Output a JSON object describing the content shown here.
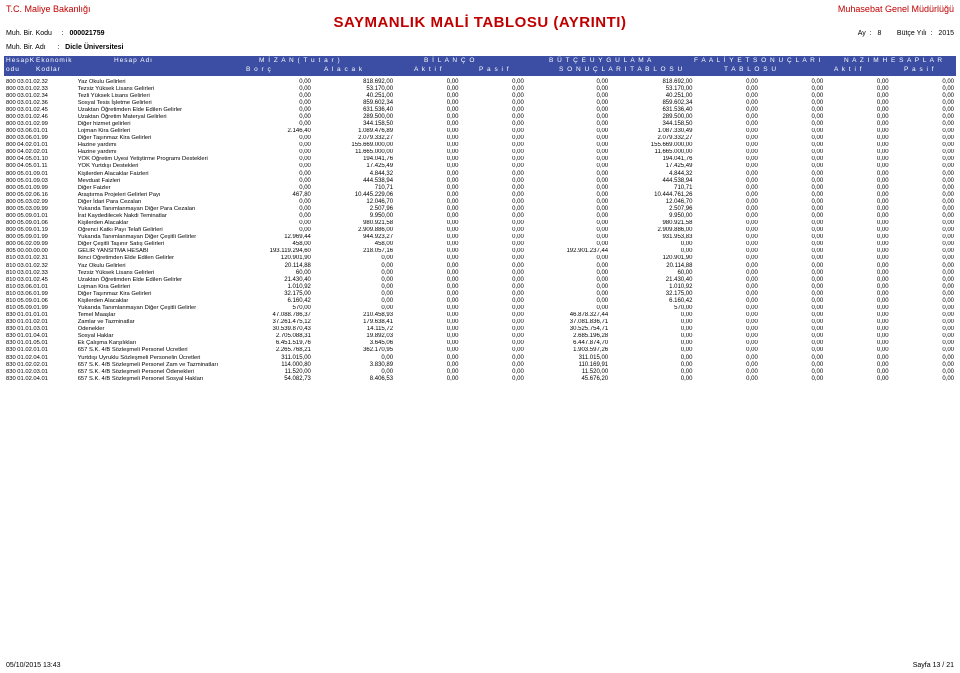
{
  "header": {
    "ministry": "T.C. Maliye Bakanlığı",
    "department": "Muhasebat Genel Müdürlüğü",
    "title": "SAYMANLIK MALİ TABLOSU (AYRINTI)",
    "birKoduLabel": "Muh. Bir. Kodu",
    "birKoduValue": "000021759",
    "ayLabel": "Ay",
    "ayValue": "8",
    "butceYiliLabel": "Bütçe Yılı",
    "butceYiliValue": "2015",
    "birAdiLabel": "Muh. Bir. Adı",
    "birAdiValue": "Dicle Üniversitesi"
  },
  "band": {
    "c1a": "HesapK",
    "c1b": "odu",
    "c2a": "Ekonomik",
    "c2b": "Kodlar",
    "c3": "Hesap Adı",
    "mizan": "M İ Z A N  ( T u t a r )",
    "bilanco": "B İ L A N Ç O",
    "butce": "B Ü T Ç E   U Y G U L A M A",
    "faaliyet": "F A A L İ Y E T   S O N U Ç L A R I",
    "nazim": "N A Z I M   H E S A P L A R",
    "borc": "B o r ç",
    "alacak": "A l a c a k",
    "aktif": "A k t i f",
    "pasif": "P a s i f",
    "sonuclari": "S O N U Ç L A R I   T A B L O S U",
    "tablosu": "T A B L O S U"
  },
  "rows": [
    {
      "c": "800  03.01.02.32",
      "d": "Yaz Okulu Gelirleri",
      "v": [
        "0,00",
        "818.692,00",
        "0,00",
        "0,00",
        "0,00",
        "818.692,00",
        "0,00",
        "0,00",
        "0,00",
        "0,00"
      ]
    },
    {
      "c": "800  03.01.02.33",
      "d": "Tezsiz Yüksek Lisans Gelirleri",
      "v": [
        "0,00",
        "53.170,00",
        "0,00",
        "0,00",
        "0,00",
        "53.170,00",
        "0,00",
        "0,00",
        "0,00",
        "0,00"
      ]
    },
    {
      "c": "800  03.01.02.34",
      "d": "Tezli Yüksek Lisans Gelirleri",
      "v": [
        "0,00",
        "40.251,00",
        "0,00",
        "0,00",
        "0,00",
        "40.251,00",
        "0,00",
        "0,00",
        "0,00",
        "0,00"
      ]
    },
    {
      "c": "800  03.01.02.36",
      "d": "Sosyal Tesis İşletme Gelirleri",
      "v": [
        "0,00",
        "859.602,34",
        "0,00",
        "0,00",
        "0,00",
        "859.602,34",
        "0,00",
        "0,00",
        "0,00",
        "0,00"
      ]
    },
    {
      "c": "800  03.01.02.45",
      "d": "Uzaktan Öğretimden Elde Edilen Gelirler",
      "v": [
        "0,00",
        "631.536,40",
        "0,00",
        "0,00",
        "0,00",
        "631.536,40",
        "0,00",
        "0,00",
        "0,00",
        "0,00"
      ]
    },
    {
      "c": "800  03.01.02.46",
      "d": "Uzaktan Öğretim Materyal Gelirleri",
      "v": [
        "0,00",
        "289.500,00",
        "0,00",
        "0,00",
        "0,00",
        "289.500,00",
        "0,00",
        "0,00",
        "0,00",
        "0,00"
      ]
    },
    {
      "c": "800  03.01.02.99",
      "d": "Diğer hizmet gelirleri",
      "v": [
        "0,00",
        "344.158,50",
        "0,00",
        "0,00",
        "0,00",
        "344.158,50",
        "0,00",
        "0,00",
        "0,00",
        "0,00"
      ]
    },
    {
      "c": "800  03.06.01.01",
      "d": "Lojman Kira Gelirleri",
      "v": [
        "2.146,40",
        "1.089.476,89",
        "0,00",
        "0,00",
        "0,00",
        "1.087.330,49",
        "0,00",
        "0,00",
        "0,00",
        "0,00"
      ]
    },
    {
      "c": "800  03.06.01.99",
      "d": "Diğer Taşınmaz Kira Gelirleri",
      "v": [
        "0,00",
        "2.079.332,27",
        "0,00",
        "0,00",
        "0,00",
        "2.079.332,27",
        "0,00",
        "0,00",
        "0,00",
        "0,00"
      ]
    },
    {
      "c": "800  04.02.01.01",
      "d": "Hazine yardımı",
      "v": [
        "0,00",
        "155.669.000,00",
        "0,00",
        "0,00",
        "0,00",
        "155.669.000,00",
        "0,00",
        "0,00",
        "0,00",
        "0,00"
      ]
    },
    {
      "c": "800  04.02.02.01",
      "d": "Hazine yardımı",
      "v": [
        "0,00",
        "11.665.000,00",
        "0,00",
        "0,00",
        "0,00",
        "11.665.000,00",
        "0,00",
        "0,00",
        "0,00",
        "0,00"
      ]
    },
    {
      "c": "800  04.05.01.10",
      "d": "YÖK Öğretim Üyesi Yetiştirme Programı Destekleri",
      "v": [
        "0,00",
        "194.041,76",
        "0,00",
        "0,00",
        "0,00",
        "194.041,76",
        "0,00",
        "0,00",
        "0,00",
        "0,00"
      ]
    },
    {
      "c": "800  04.05.01.11",
      "d": "YÖK Yurtdışı Destekleri",
      "v": [
        "0,00",
        "17.425,49",
        "0,00",
        "0,00",
        "0,00",
        "17.425,49",
        "0,00",
        "0,00",
        "0,00",
        "0,00"
      ]
    },
    {
      "c": "800  05.01.09.01",
      "d": "Kişilerden Alacaklar Faizleri",
      "v": [
        "0,00",
        "4.844,32",
        "0,00",
        "0,00",
        "0,00",
        "4.844,32",
        "0,00",
        "0,00",
        "0,00",
        "0,00"
      ]
    },
    {
      "c": "800  05.01.09.03",
      "d": "Mevduat Faizleri",
      "v": [
        "0,00",
        "444.538,94",
        "0,00",
        "0,00",
        "0,00",
        "444.538,94",
        "0,00",
        "0,00",
        "0,00",
        "0,00"
      ]
    },
    {
      "c": "800  05.01.09.99",
      "d": "Diğer Faizler",
      "v": [
        "0,00",
        "710,71",
        "0,00",
        "0,00",
        "0,00",
        "710,71",
        "0,00",
        "0,00",
        "0,00",
        "0,00"
      ]
    },
    {
      "c": "800  05.02.06.16",
      "d": "Araştırma Projeleri Gelirleri Payı",
      "v": [
        "467,80",
        "10.445.229,06",
        "0,00",
        "0,00",
        "0,00",
        "10.444.761,26",
        "0,00",
        "0,00",
        "0,00",
        "0,00"
      ]
    },
    {
      "c": "800  05.03.02.99",
      "d": "Diğer İdari Para Cezaları",
      "v": [
        "0,00",
        "12.046,70",
        "0,00",
        "0,00",
        "0,00",
        "12.046,70",
        "0,00",
        "0,00",
        "0,00",
        "0,00"
      ]
    },
    {
      "c": "800  05.03.09.99",
      "d": "Yukarıda Tanımlanmayan Diğer Para Cezaları",
      "v": [
        "0,00",
        "2.507,96",
        "0,00",
        "0,00",
        "0,00",
        "2.507,96",
        "0,00",
        "0,00",
        "0,00",
        "0,00"
      ]
    },
    {
      "c": "800  05.09.01.01",
      "d": "İrat Kaydedilecek Nakdi Teminatlar",
      "v": [
        "0,00",
        "9.950,00",
        "0,00",
        "0,00",
        "0,00",
        "9.950,00",
        "0,00",
        "0,00",
        "0,00",
        "0,00"
      ]
    },
    {
      "c": "800  05.09.01.06",
      "d": "Kişilerden Alacaklar",
      "v": [
        "0,00",
        "980.921,58",
        "0,00",
        "0,00",
        "0,00",
        "980.921,58",
        "0,00",
        "0,00",
        "0,00",
        "0,00"
      ]
    },
    {
      "c": "800  05.09.01.19",
      "d": "Öğrenci Katkı Payı Telafi Gelirleri",
      "v": [
        "0,00",
        "2.909.886,00",
        "0,00",
        "0,00",
        "0,00",
        "2.909.886,00",
        "0,00",
        "0,00",
        "0,00",
        "0,00"
      ]
    },
    {
      "c": "800  05.09.01.99",
      "d": "Yukarıda Tanımlanmayan Diğer Çeşitli Gelirler",
      "v": [
        "12.969,44",
        "944.923,27",
        "0,00",
        "0,00",
        "0,00",
        "931.953,83",
        "0,00",
        "0,00",
        "0,00",
        "0,00"
      ]
    },
    {
      "c": "800  06.02.09.99",
      "d": "Diğer Çeşitli Taşınır Satış Gelirleri",
      "v": [
        "458,00",
        "458,00",
        "0,00",
        "0,00",
        "0,00",
        "0,00",
        "0,00",
        "0,00",
        "0,00",
        "0,00"
      ]
    },
    {
      "c": "805  00.00.00.00",
      "d": "GELİR YANSITMA HESABI",
      "v": [
        "193.119.294,60",
        "218.057,16",
        "0,00",
        "0,00",
        "192.901.237,44",
        "0,00",
        "0,00",
        "0,00",
        "0,00",
        "0,00"
      ]
    },
    {
      "c": "810  03.01.02.31",
      "d": "İkinci Öğretimden Elde Edilen Gelirler",
      "v": [
        "120.901,90",
        "0,00",
        "0,00",
        "0,00",
        "0,00",
        "120.901,90",
        "0,00",
        "0,00",
        "0,00",
        "0,00"
      ]
    },
    {
      "c": "810  03.01.02.32",
      "d": "Yaz Okulu Gelirleri",
      "v": [
        "20.114,88",
        "0,00",
        "0,00",
        "0,00",
        "0,00",
        "20.114,88",
        "0,00",
        "0,00",
        "0,00",
        "0,00"
      ]
    },
    {
      "c": "810  03.01.02.33",
      "d": "Tezsiz Yüksek Lisans Gelirleri",
      "v": [
        "60,00",
        "0,00",
        "0,00",
        "0,00",
        "0,00",
        "60,00",
        "0,00",
        "0,00",
        "0,00",
        "0,00"
      ]
    },
    {
      "c": "810  03.01.02.45",
      "d": "Uzaktan Öğretimden Elde Edilen Gelirler",
      "v": [
        "21.430,40",
        "0,00",
        "0,00",
        "0,00",
        "0,00",
        "21.430,40",
        "0,00",
        "0,00",
        "0,00",
        "0,00"
      ]
    },
    {
      "c": "810  03.06.01.01",
      "d": "Lojman Kira Gelirleri",
      "v": [
        "1.010,92",
        "0,00",
        "0,00",
        "0,00",
        "0,00",
        "1.010,92",
        "0,00",
        "0,00",
        "0,00",
        "0,00"
      ]
    },
    {
      "c": "810  03.06.01.99",
      "d": "Diğer Taşınmaz Kira Gelirleri",
      "v": [
        "32.175,00",
        "0,00",
        "0,00",
        "0,00",
        "0,00",
        "32.175,00",
        "0,00",
        "0,00",
        "0,00",
        "0,00"
      ]
    },
    {
      "c": "810  05.09.01.06",
      "d": "Kişilerden Alacaklar",
      "v": [
        "6.160,42",
        "0,00",
        "0,00",
        "0,00",
        "0,00",
        "6.160,42",
        "0,00",
        "0,00",
        "0,00",
        "0,00"
      ]
    },
    {
      "c": "810  05.09.01.99",
      "d": "Yukarıda Tanımlanmayan Diğer Çeşitli Gelirler",
      "v": [
        "570,00",
        "0,00",
        "0,00",
        "0,00",
        "0,00",
        "570,00",
        "0,00",
        "0,00",
        "0,00",
        "0,00"
      ]
    },
    {
      "c": "830  01.01.01.01",
      "d": "Temel Maaşlar",
      "v": [
        "47.088.786,37",
        "210.458,93",
        "0,00",
        "0,00",
        "46.878.327,44",
        "0,00",
        "0,00",
        "0,00",
        "0,00",
        "0,00"
      ]
    },
    {
      "c": "830  01.01.02.01",
      "d": "Zamlar ve Tazminatlar",
      "v": [
        "37.261.475,12",
        "179.638,41",
        "0,00",
        "0,00",
        "37.081.836,71",
        "0,00",
        "0,00",
        "0,00",
        "0,00",
        "0,00"
      ]
    },
    {
      "c": "830  01.01.03.01",
      "d": "Ödenekler",
      "v": [
        "30.539.870,43",
        "14.115,72",
        "0,00",
        "0,00",
        "30.525.754,71",
        "0,00",
        "0,00",
        "0,00",
        "0,00",
        "0,00"
      ]
    },
    {
      "c": "830  01.01.04.01",
      "d": "Sosyal Haklar",
      "v": [
        "2.705.088,31",
        "19.892,03",
        "0,00",
        "0,00",
        "2.685.196,28",
        "0,00",
        "0,00",
        "0,00",
        "0,00",
        "0,00"
      ]
    },
    {
      "c": "830  01.01.05.01",
      "d": "Ek Çalışma Karşılıkları",
      "v": [
        "6.451.519,76",
        "3.645,06",
        "0,00",
        "0,00",
        "6.447.874,70",
        "0,00",
        "0,00",
        "0,00",
        "0,00",
        "0,00"
      ]
    },
    {
      "c": "830  01.02.01.01",
      "d": "657 S.K. 4/B Sözleşmeli Personel Ücretleri",
      "v": [
        "2.265.768,21",
        "362.170,95",
        "0,00",
        "0,00",
        "1.903.597,26",
        "0,00",
        "0,00",
        "0,00",
        "0,00",
        "0,00"
      ]
    },
    {
      "c": "830  01.02.04.01",
      "d": "Yurtdışı Uyruklu Sözleşmeli Personelin Ücretleri",
      "v": [
        "311.015,00",
        "0,00",
        "0,00",
        "0,00",
        "311.015,00",
        "0,00",
        "0,00",
        "0,00",
        "0,00",
        "0,00"
      ]
    },
    {
      "c": "830  01.02.02.01",
      "d": "657 S.K. 4/B Sözleşmeli Personel Zam ve Tazminatları",
      "v": [
        "114.000,80",
        "3.830,89",
        "0,00",
        "0,00",
        "110.169,91",
        "0,00",
        "0,00",
        "0,00",
        "0,00",
        "0,00"
      ]
    },
    {
      "c": "830  01.02.03.01",
      "d": "657 S.K. 4/B Sözleşmeli Personel Ödenekleri",
      "v": [
        "11.520,00",
        "0,00",
        "0,00",
        "0,00",
        "11.520,00",
        "0,00",
        "0,00",
        "0,00",
        "0,00",
        "0,00"
      ]
    },
    {
      "c": "830  01.02.04.01",
      "d": "657 S.K. 4/B Sözleşmeli Personel Sosyal Hakları",
      "v": [
        "54.082,73",
        "8.406,53",
        "0,00",
        "0,00",
        "45.676,20",
        "0,00",
        "0,00",
        "0,00",
        "0,00",
        "0,00"
      ]
    }
  ],
  "footer": {
    "left": "05/10/2015 13:43",
    "right": "Sayfa 13 / 21"
  },
  "style": {
    "brandColor": "#c00000",
    "bandColor": "#3b4ea3"
  }
}
